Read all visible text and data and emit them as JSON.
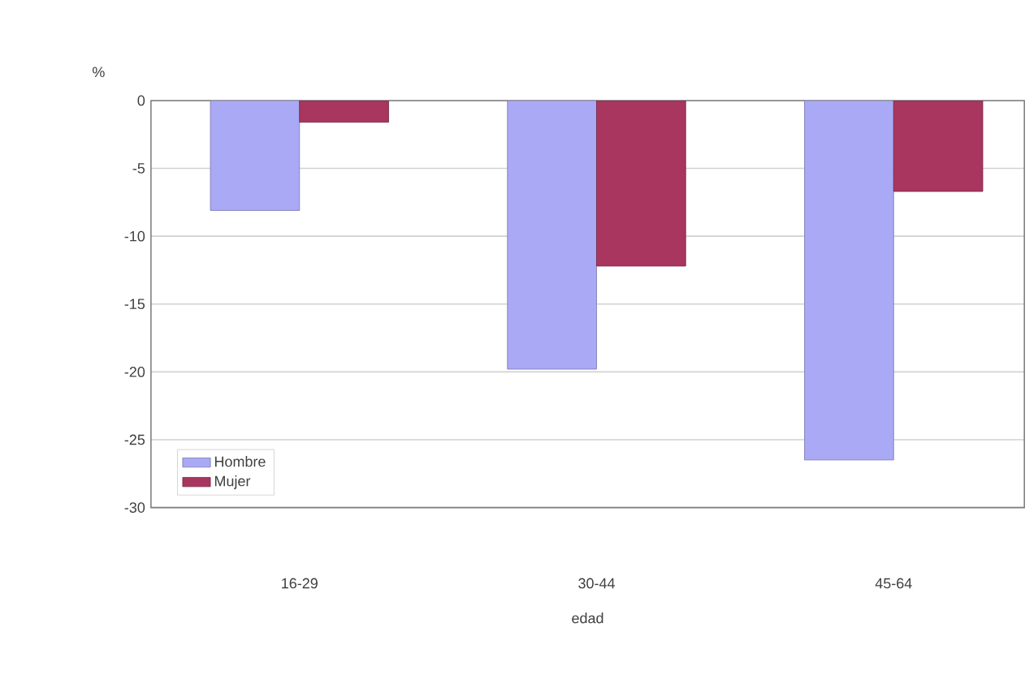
{
  "chart_data": {
    "type": "bar",
    "xlabel": "edad",
    "ylabel": "%",
    "categories": [
      "16-29",
      "30-44",
      "45-64"
    ],
    "series": [
      {
        "name": "Hombre",
        "color": "#a9a9f5",
        "values": [
          -8.1,
          -19.8,
          -26.5
        ]
      },
      {
        "name": "Mujer",
        "color": "#a8365f",
        "values": [
          -1.6,
          -12.2,
          -6.7
        ]
      }
    ],
    "ylim": [
      -30,
      0
    ],
    "yticks": [
      0,
      -5,
      -10,
      -15,
      -20,
      -25,
      -30
    ],
    "grid": "y",
    "legend": "bottom left"
  }
}
